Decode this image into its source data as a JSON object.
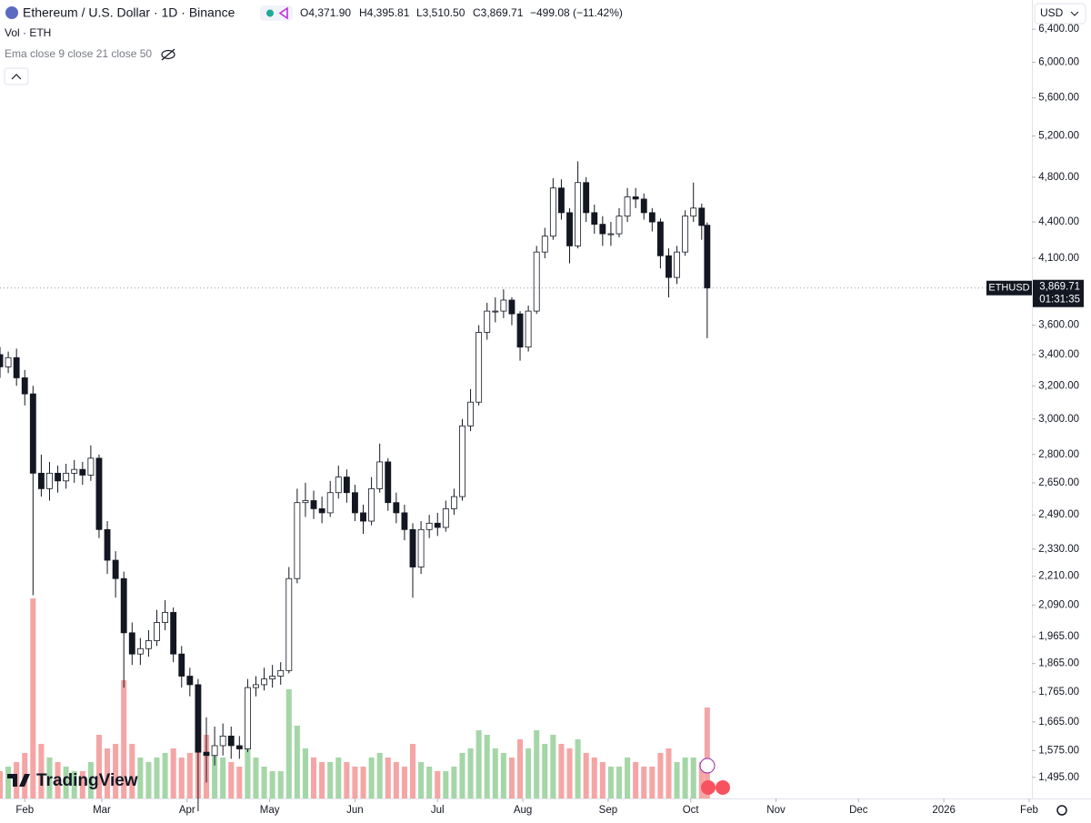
{
  "chart_data": {
    "type": "candlestick",
    "title": "Ethereum / U.S. Dollar · 1D · Binance",
    "ohlc_labels": [
      "O4,371.90",
      "H4,395.81",
      "L3,510.50",
      "C3,869.71"
    ],
    "change_label": "−499.08 (−11.42%)",
    "volume_label": "Vol · ETH",
    "indicator_label": "Ema close 9 close 21 close 50",
    "currency": "USD",
    "symbol": "ETHUSD",
    "price_label": "3,869.71",
    "countdown": "01:31:35",
    "brand": "TradingView",
    "log_scale": true,
    "up_color": "#ffffff",
    "down_color": "#131722",
    "wick_color": "#131722",
    "volume_up_color": "#a5d6a7",
    "volume_down_color": "#f5a5a5",
    "x": [
      -9,
      -6,
      -3,
      0,
      3,
      6,
      9,
      12,
      15,
      18,
      21,
      24,
      27,
      30,
      33,
      36,
      39,
      42,
      45,
      48,
      51,
      54,
      57,
      60,
      63,
      66,
      69,
      72,
      75,
      78,
      81,
      84,
      87,
      90,
      93,
      96,
      99,
      102,
      105,
      108,
      111,
      114,
      117,
      120,
      123,
      126,
      129,
      132,
      135,
      138,
      141,
      144,
      147,
      150,
      153,
      156,
      159,
      162,
      165,
      168,
      171,
      174,
      177,
      180,
      183,
      186,
      189,
      192,
      195,
      198,
      201,
      204,
      207,
      210,
      213,
      216,
      219,
      222,
      225,
      228,
      231,
      234,
      237,
      240,
      243,
      246,
      248
    ],
    "open": [
      3400,
      3320,
      3380,
      3250,
      3150,
      2700,
      2620,
      2700,
      2660,
      2700,
      2720,
      2690,
      2780,
      2420,
      2280,
      2200,
      1980,
      1900,
      1920,
      1950,
      2020,
      2060,
      1900,
      1820,
      1790,
      1570,
      1560,
      1590,
      1620,
      1590,
      1580,
      1780,
      1790,
      1810,
      1820,
      1840,
      2200,
      2550,
      2560,
      2520,
      2500,
      2600,
      2680,
      2600,
      2500,
      2460,
      2620,
      2760,
      2550,
      2500,
      2420,
      2250,
      2420,
      2450,
      2430,
      2520,
      2580,
      2960,
      3100,
      3550,
      3700,
      3700,
      3780,
      3680,
      3450,
      3700,
      4150,
      4280,
      4700,
      4480,
      4200,
      4750,
      4480,
      4380,
      4300,
      4300,
      4450,
      4620,
      4600,
      4480,
      4400,
      4120,
      3950,
      4150,
      4450,
      4520,
      4371.9
    ],
    "high": [
      3450,
      3420,
      3440,
      3300,
      3200,
      2800,
      2760,
      2740,
      2750,
      2770,
      2760,
      2850,
      2800,
      2460,
      2320,
      2230,
      2020,
      1960,
      1990,
      2070,
      2110,
      2080,
      1930,
      1850,
      1810,
      1680,
      1650,
      1660,
      1650,
      1620,
      1810,
      1820,
      1850,
      1860,
      1870,
      2250,
      2620,
      2650,
      2610,
      2580,
      2660,
      2740,
      2720,
      2640,
      2540,
      2680,
      2860,
      2780,
      2600,
      2540,
      2450,
      2460,
      2490,
      2500,
      2560,
      2620,
      3000,
      3180,
      3600,
      3760,
      3800,
      3860,
      3800,
      3700,
      3740,
      4200,
      4350,
      4790,
      4780,
      4520,
      4950,
      4800,
      4550,
      4450,
      4400,
      4520,
      4700,
      4700,
      4650,
      4520,
      4430,
      4180,
      4200,
      4500,
      4750,
      4560,
      4395.81
    ],
    "low": [
      3250,
      3280,
      3200,
      3080,
      2130,
      2580,
      2560,
      2600,
      2620,
      2650,
      2640,
      2660,
      2380,
      2220,
      2120,
      1780,
      1860,
      1860,
      1890,
      1930,
      1990,
      1870,
      1780,
      1750,
      1400,
      1480,
      1530,
      1560,
      1550,
      1550,
      1570,
      1750,
      1770,
      1780,
      1790,
      1830,
      2180,
      2480,
      2470,
      2450,
      2480,
      2570,
      2550,
      2460,
      2400,
      2440,
      2600,
      2510,
      2450,
      2370,
      2120,
      2220,
      2380,
      2390,
      2410,
      2490,
      2560,
      2930,
      3080,
      3500,
      3620,
      3650,
      3600,
      3360,
      3420,
      3680,
      4100,
      4250,
      4420,
      4060,
      4180,
      4400,
      4300,
      4200,
      4200,
      4270,
      4400,
      4520,
      4420,
      4320,
      4020,
      3800,
      3900,
      4120,
      4400,
      4250,
      3510.5
    ],
    "close": [
      3320,
      3380,
      3250,
      3150,
      2700,
      2620,
      2700,
      2660,
      2700,
      2720,
      2690,
      2780,
      2420,
      2280,
      2200,
      1980,
      1900,
      1920,
      1950,
      2020,
      2060,
      1900,
      1820,
      1790,
      1570,
      1560,
      1590,
      1620,
      1590,
      1580,
      1780,
      1790,
      1810,
      1820,
      1840,
      2200,
      2550,
      2560,
      2520,
      2500,
      2600,
      2680,
      2600,
      2500,
      2460,
      2620,
      2760,
      2550,
      2500,
      2420,
      2250,
      2420,
      2450,
      2430,
      2520,
      2580,
      2960,
      3100,
      3550,
      3700,
      3700,
      3780,
      3680,
      3450,
      3700,
      4150,
      4280,
      4700,
      4480,
      4200,
      4750,
      4480,
      4380,
      4300,
      4300,
      4450,
      4620,
      4600,
      4480,
      4400,
      4120,
      3950,
      4150,
      4450,
      4520,
      4370,
      3869.71
    ],
    "volume": [
      30,
      35,
      40,
      50,
      220,
      60,
      45,
      40,
      35,
      30,
      30,
      40,
      70,
      55,
      60,
      130,
      60,
      45,
      40,
      45,
      50,
      55,
      45,
      50,
      110,
      70,
      50,
      45,
      40,
      35,
      60,
      45,
      35,
      30,
      30,
      120,
      80,
      55,
      45,
      40,
      40,
      45,
      40,
      35,
      35,
      45,
      50,
      45,
      40,
      35,
      60,
      40,
      35,
      30,
      30,
      35,
      50,
      55,
      75,
      70,
      55,
      50,
      45,
      65,
      55,
      75,
      60,
      70,
      60,
      55,
      65,
      50,
      45,
      40,
      35,
      35,
      45,
      40,
      35,
      35,
      50,
      55,
      40,
      45,
      45,
      40,
      100
    ],
    "xlim": [
      -9,
      366
    ],
    "xticks": [
      {
        "value": 0,
        "label": "Feb"
      },
      {
        "value": 28,
        "label": "Mar"
      },
      {
        "value": 59,
        "label": "Apr"
      },
      {
        "value": 89,
        "label": "May"
      },
      {
        "value": 120,
        "label": "Jun"
      },
      {
        "value": 150,
        "label": "Jul"
      },
      {
        "value": 181,
        "label": "Aug"
      },
      {
        "value": 212,
        "label": "Sep"
      },
      {
        "value": 242,
        "label": "Oct"
      },
      {
        "value": 273,
        "label": "Nov"
      },
      {
        "value": 303,
        "label": "Dec"
      },
      {
        "value": 334,
        "label": "2026"
      },
      {
        "value": 365,
        "label": "Feb"
      }
    ],
    "ylim": [
      1435,
      6773
    ],
    "yticks": [
      {
        "value": 1495,
        "label": "1,495.00"
      },
      {
        "value": 1575,
        "label": "1,575.00"
      },
      {
        "value": 1665,
        "label": "1,665.00"
      },
      {
        "value": 1765,
        "label": "1,765.00"
      },
      {
        "value": 1865,
        "label": "1,865.00"
      },
      {
        "value": 1965,
        "label": "1,965.00"
      },
      {
        "value": 2090,
        "label": "2,090.00"
      },
      {
        "value": 2210,
        "label": "2,210.00"
      },
      {
        "value": 2330,
        "label": "2,330.00"
      },
      {
        "value": 2490,
        "label": "2,490.00"
      },
      {
        "value": 2650,
        "label": "2,650.00"
      },
      {
        "value": 2800,
        "label": "2,800.00"
      },
      {
        "value": 3000,
        "label": "3,000.00"
      },
      {
        "value": 3200,
        "label": "3,200.00"
      },
      {
        "value": 3400,
        "label": "3,400.00"
      },
      {
        "value": 3600,
        "label": "3,600.00"
      },
      {
        "value": 4100,
        "label": "4,100.00"
      },
      {
        "value": 4400,
        "label": "4,400.00"
      },
      {
        "value": 4800,
        "label": "4,800.00"
      },
      {
        "value": 5200,
        "label": "5,200.00"
      },
      {
        "value": 5600,
        "label": "5,600.00"
      },
      {
        "value": 6000,
        "label": "6,000.00"
      },
      {
        "value": 6400,
        "label": "6,400.00"
      }
    ]
  }
}
